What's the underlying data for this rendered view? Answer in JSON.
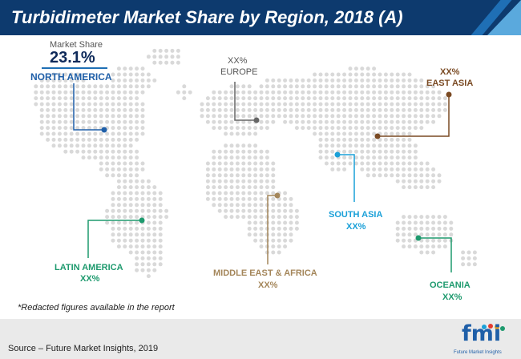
{
  "title": "Turbidimeter Market Share by Region, 2018 (A)",
  "market_share_label": "Market Share",
  "market_share_value": "23.1%",
  "regions": {
    "north_america": {
      "name": "NORTH AMERICA",
      "color": "#1f5fa8"
    },
    "europe": {
      "name": "EUROPE",
      "value": "XX%",
      "color": "#666666"
    },
    "east_asia": {
      "name": "EAST ASIA",
      "value": "XX%",
      "color": "#7a4a23"
    },
    "south_asia": {
      "name": "SOUTH ASIA",
      "value": "XX%",
      "color": "#1aa0d8"
    },
    "latin_america": {
      "name": "LATIN AMERICA",
      "value": "XX%",
      "color": "#1e9a6e"
    },
    "mea": {
      "name": "MIDDLE EAST & AFRICA",
      "value": "XX%",
      "color": "#a4865a"
    },
    "oceania": {
      "name": "OCEANIA",
      "value": "XX%",
      "color": "#1e9a6e"
    }
  },
  "note": "*Redacted figures available in the report",
  "source": "Source – Future Market Insights, 2019",
  "logo": {
    "name": "fmi",
    "tagline": "Future Market Insights"
  },
  "colors": {
    "header": "#0d3a6e",
    "dots": "#d9d9d9",
    "footer": "#eaeaea"
  }
}
